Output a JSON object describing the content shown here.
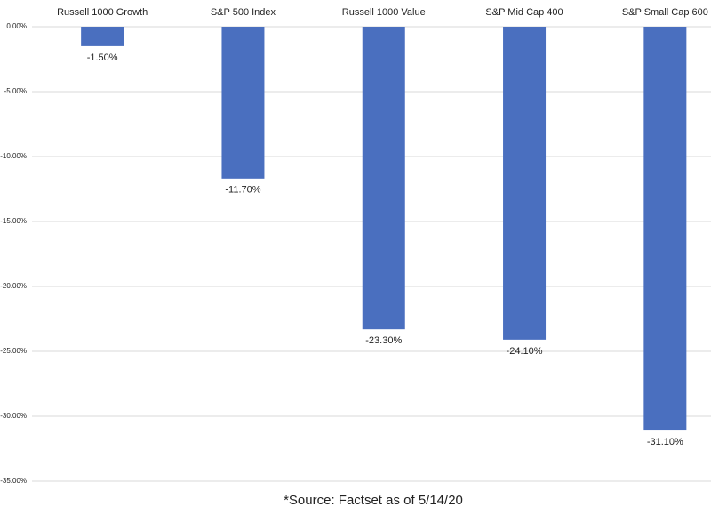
{
  "chart_data": {
    "type": "bar",
    "categories": [
      "Russell 1000 Growth",
      "S&P 500 Index",
      "Russell 1000 Value",
      "S&P Mid Cap 400",
      "S&P Small Cap 600"
    ],
    "values": [
      -1.5,
      -11.7,
      -23.3,
      -24.1,
      -31.1
    ],
    "value_labels": [
      "-1.50%",
      "-11.70%",
      "-23.30%",
      "-24.10%",
      "-31.10%"
    ],
    "color": "#4a6fbf",
    "ylim": [
      -35,
      0
    ],
    "yticks": [
      {
        "value": 0,
        "label": "0.00%"
      },
      {
        "value": -5,
        "label": "-5.00%"
      },
      {
        "value": -10,
        "label": "-10.00%"
      },
      {
        "value": -15,
        "label": "-15.00%"
      },
      {
        "value": -20,
        "label": "-20.00%"
      },
      {
        "value": -25,
        "label": "-25.00%"
      },
      {
        "value": -30,
        "label": "-30.00%"
      },
      {
        "value": -35,
        "label": "-35.00%"
      }
    ],
    "grid": true,
    "note": "*Source: Factset as of 5/14/20"
  }
}
